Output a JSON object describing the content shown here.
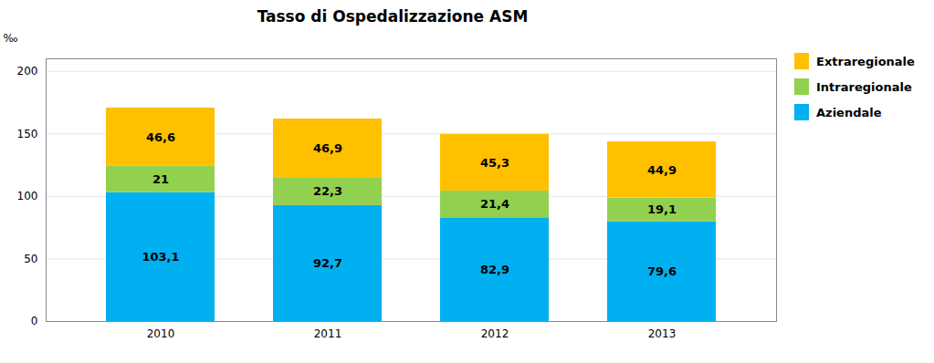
{
  "chart_data": {
    "type": "bar",
    "title": "Tasso di Ospedalizzazione ASM",
    "ylabel": "‰",
    "categories": [
      "2010",
      "2011",
      "2012",
      "2013"
    ],
    "series": [
      {
        "name": "Aziendale",
        "color": "#00B0F0",
        "values": [
          103.1,
          92.7,
          82.9,
          79.6
        ],
        "value_labels": [
          "103,1",
          "92,7",
          "82,9",
          "79,6"
        ]
      },
      {
        "name": "Intraregionale",
        "color": "#92D050",
        "values": [
          21.0,
          22.3,
          21.4,
          19.1
        ],
        "value_labels": [
          "21",
          "22,3",
          "21,4",
          "19,1"
        ]
      },
      {
        "name": "Extraregionale",
        "color": "#FFC000",
        "values": [
          46.6,
          46.9,
          45.3,
          44.9
        ],
        "value_labels": [
          "46,6",
          "46,9",
          "45,3",
          "44,9"
        ]
      }
    ],
    "stacked": true,
    "data_labels": true,
    "ylim": [
      0,
      210
    ],
    "yticks": [
      0,
      50,
      100,
      150,
      200
    ],
    "grid": true,
    "legend": "right"
  }
}
